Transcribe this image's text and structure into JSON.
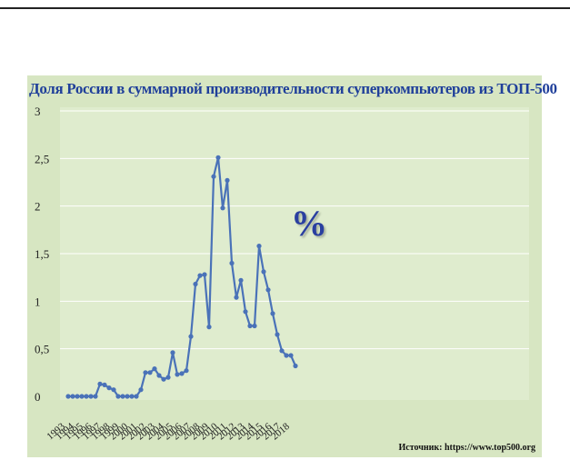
{
  "chart_data": {
    "type": "line",
    "title": "Доля России в суммарной производительности суперкомпьютеров из ТОП-500",
    "annotation": "%",
    "source": "Источник: https://www.top500.org",
    "ylim": [
      0,
      3
    ],
    "yticks": [
      "0",
      "0,5",
      "1",
      "1,5",
      "2",
      "2,5",
      "3"
    ],
    "xtick_labels": [
      "1993",
      "1994",
      "1995",
      "1996",
      "1997",
      "1998",
      "1999",
      "2000",
      "2001",
      "2002",
      "2003",
      "2004",
      "2005",
      "2006",
      "2007",
      "2008",
      "2009",
      "2010",
      "2011",
      "2012",
      "2013",
      "2014",
      "2015",
      "2016",
      "2017",
      "2018"
    ],
    "grid": true,
    "series": [
      {
        "color": "#4a72b8",
        "values": [
          0,
          0,
          0,
          0,
          0,
          0,
          0,
          0.13,
          0.12,
          0.09,
          0.07,
          0,
          0,
          0,
          0,
          0,
          0.07,
          0.25,
          0.25,
          0.29,
          0.22,
          0.18,
          0.2,
          0.46,
          0.23,
          0.24,
          0.27,
          0.63,
          1.18,
          1.27,
          1.28,
          0.73,
          2.31,
          2.51,
          1.98,
          2.27,
          1.4,
          1.04,
          1.22,
          0.89,
          0.74,
          0.74,
          1.58,
          1.31,
          1.12,
          0.87,
          0.65,
          0.48,
          0.43,
          0.43,
          0.32
        ]
      }
    ]
  },
  "colors": {
    "panel": "#d7e6c2",
    "title": "#1f3f9a",
    "line": "#4a72b8",
    "grid": "#ffffff"
  }
}
